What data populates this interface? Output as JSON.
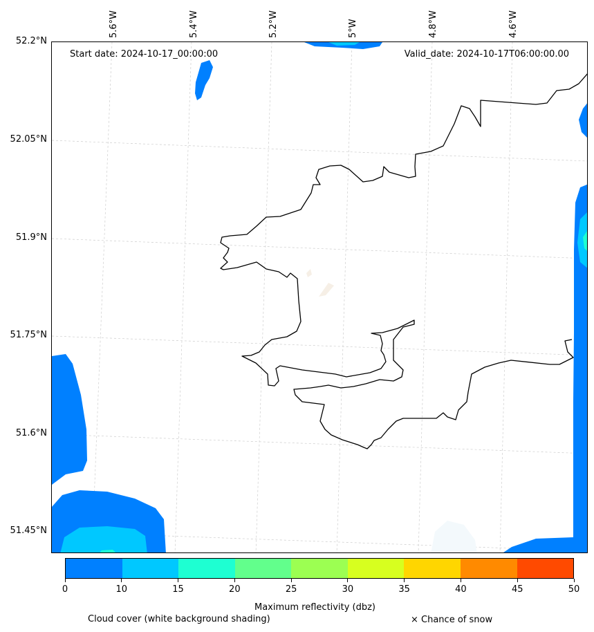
{
  "map": {
    "start_label": "Start date: 2024-10-17_00:00:00",
    "valid_label": "Valid_date: 2024-10-17T06:00:00.00",
    "longitudes": [
      "5.6°W",
      "5.4°W",
      "5.2°W",
      "5°W",
      "4.8°W",
      "4.6°W"
    ],
    "latitudes": [
      "52.2°N",
      "52.05°N",
      "51.9°N",
      "51.75°N",
      "51.6°N",
      "51.45°N"
    ],
    "reflectivity_colors": {
      "band_0_10": "#0080ff",
      "band_10_15": "#00c8ff"
    },
    "coastline_color": "#000000",
    "gridline_color": "#cccccc"
  },
  "colorbar": {
    "label": "Maximum reflectivity (dbz)",
    "ticks": [
      "0",
      "10",
      "15",
      "20",
      "25",
      "30",
      "35",
      "40",
      "45",
      "50"
    ],
    "colors": [
      "#0080ff",
      "#00c8ff",
      "#1effd2",
      "#62ff8c",
      "#9cff52",
      "#d7ff1f",
      "#ffd600",
      "#ff8a00",
      "#ff4a00"
    ]
  },
  "legend": {
    "cloud_cover_label": "Cloud cover (white background shading)",
    "snow_label": "× Chance of snow"
  }
}
